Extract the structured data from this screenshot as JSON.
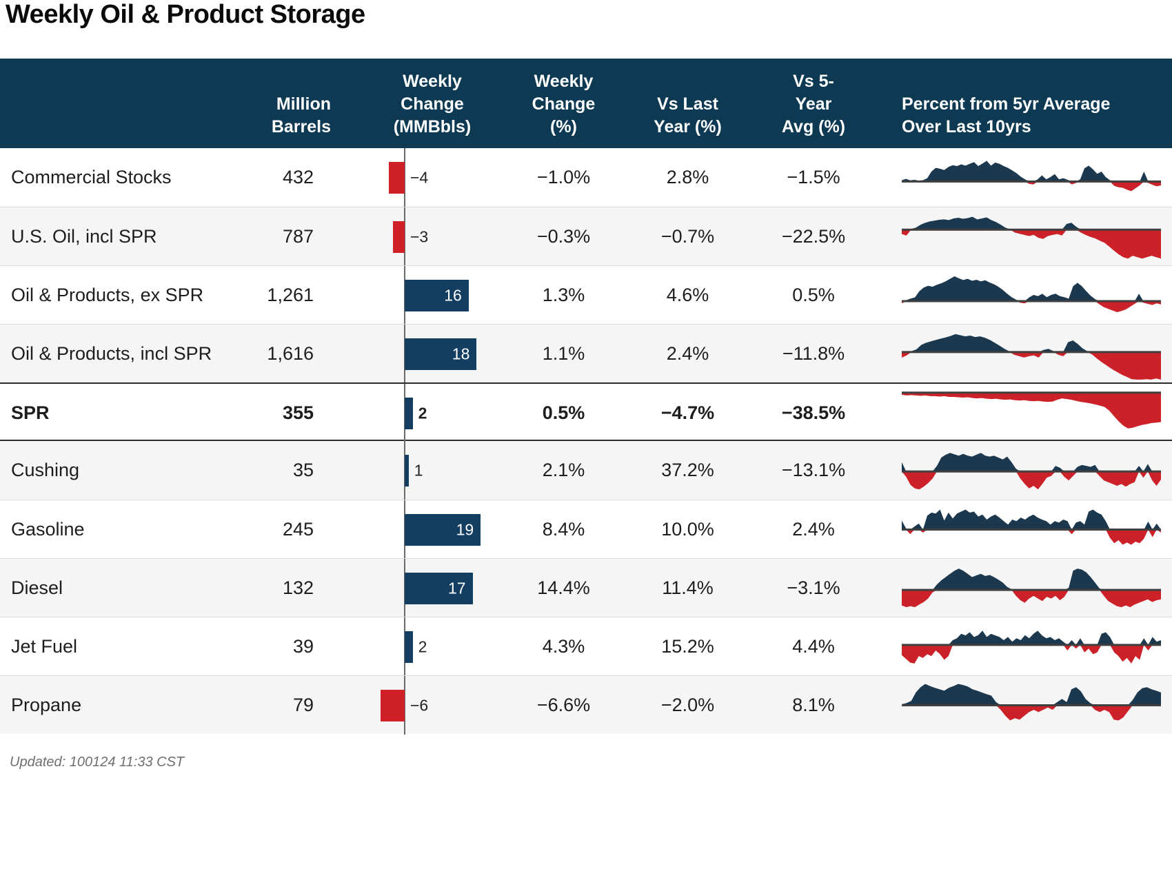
{
  "title": "Weekly Oil & Product Storage",
  "footer": {
    "updated": "Updated: 100124 11:33 CST"
  },
  "colors": {
    "header_bg": "#0d3a52",
    "navy": "#133e61",
    "red": "#cf2027",
    "spark_navy": "#1b384e",
    "spark_red": "#cd2129",
    "spark_axis": "#3f3f3f",
    "row_alt": "#f5f5f6",
    "axis_line": "#6a6a6a"
  },
  "chart_data": {
    "type": "table",
    "title": "Weekly Oil & Product Storage",
    "columns": [
      {
        "id": "label",
        "label": ""
      },
      {
        "id": "million_barrels",
        "label": "Million\nBarrels"
      },
      {
        "id": "weekly_change_mmbbls",
        "label": "Weekly\nChange\n(MMBbls)"
      },
      {
        "id": "weekly_change_pct",
        "label": "Weekly\nChange\n(%)"
      },
      {
        "id": "vs_last_year_pct",
        "label": "Vs Last\nYear (%)"
      },
      {
        "id": "vs_5yr_avg_pct",
        "label": "Vs 5-\nYear\nAvg (%)"
      },
      {
        "id": "pct_from_5yr_avg",
        "label": "Percent from 5yr Average\nOver Last 10yrs"
      }
    ],
    "bar_axis_note": "bars show weekly change in MMBbls, negative red to left, positive navy to right",
    "rows": [
      {
        "label": "Commercial Stocks",
        "million_barrels": "432",
        "weekly_change": -4,
        "weekly_change_label": "−4",
        "weekly_change_pct": "−1.0%",
        "vs_last_year_pct": "2.8%",
        "vs_5yr_avg_pct": "−1.5%",
        "bold": false,
        "spark": {
          "baseline": 0.57,
          "pos": 32,
          "neg": 14,
          "values": [
            0.06,
            0.12,
            0.05,
            0.08,
            0.04,
            0.06,
            0.15,
            0.45,
            0.62,
            0.58,
            0.52,
            0.66,
            0.74,
            0.7,
            0.78,
            0.72,
            0.8,
            0.88,
            0.7,
            0.82,
            0.94,
            0.72,
            0.86,
            0.8,
            0.7,
            0.62,
            0.5,
            0.38,
            0.22,
            0.1,
            -0.25,
            -0.3,
            0.1,
            0.28,
            0.1,
            0.2,
            0.34,
            0.1,
            0.15,
            0.08,
            -0.3,
            -0.15,
            0.1,
            0.6,
            0.72,
            0.55,
            0.35,
            0.45,
            0.2,
            0.06,
            -0.45,
            -0.6,
            -0.65,
            -0.85,
            -1.0,
            -0.7,
            -0.4,
            0.45,
            -0.15,
            -0.35,
            -0.5,
            -0.4
          ]
        }
      },
      {
        "label": "U.S. Oil, incl SPR",
        "million_barrels": "787",
        "weekly_change": -3,
        "weekly_change_label": "−3",
        "weekly_change_pct": "−0.3%",
        "vs_last_year_pct": "−0.7%",
        "vs_5yr_avg_pct": "−22.5%",
        "bold": false,
        "spark": {
          "baseline": 0.38,
          "pos": 24,
          "neg": 42,
          "values": [
            -0.15,
            -0.2,
            0.05,
            0.12,
            0.3,
            0.42,
            0.5,
            0.55,
            0.6,
            0.62,
            0.58,
            0.68,
            0.72,
            0.66,
            0.7,
            0.78,
            0.62,
            0.68,
            0.74,
            0.58,
            0.46,
            0.3,
            0.12,
            0.02,
            -0.1,
            -0.14,
            -0.18,
            -0.22,
            -0.18,
            -0.28,
            -0.32,
            -0.22,
            -0.18,
            -0.15,
            -0.2,
            0.35,
            0.42,
            0.18,
            -0.1,
            -0.18,
            -0.25,
            -0.3,
            -0.38,
            -0.45,
            -0.58,
            -0.72,
            -0.85,
            -0.95,
            -1.0,
            -0.9,
            -0.95,
            -1.0,
            -0.95,
            -0.9,
            -0.95,
            -1.0
          ]
        }
      },
      {
        "label": "Oil & Products, ex SPR",
        "million_barrels": "1,261",
        "weekly_change": 16,
        "weekly_change_label": "16",
        "weekly_change_pct": "1.3%",
        "vs_last_year_pct": "4.6%",
        "vs_5yr_avg_pct": "0.5%",
        "bold": false,
        "spark": {
          "baseline": 0.6,
          "pos": 36,
          "neg": 16,
          "values": [
            -0.2,
            0.04,
            0.1,
            0.15,
            0.4,
            0.55,
            0.62,
            0.58,
            0.66,
            0.72,
            0.8,
            0.9,
            1.0,
            0.92,
            0.85,
            0.9,
            0.82,
            0.86,
            0.8,
            0.84,
            0.75,
            0.68,
            0.58,
            0.45,
            0.3,
            0.16,
            0.06,
            -0.15,
            -0.2,
            0.15,
            0.25,
            0.2,
            0.3,
            0.16,
            0.25,
            0.3,
            0.2,
            0.16,
            0.1,
            0.6,
            0.74,
            0.6,
            0.4,
            0.22,
            0.08,
            -0.3,
            -0.55,
            -0.7,
            -0.85,
            -1.0,
            -0.9,
            -0.75,
            -0.5,
            -0.25,
            0.3,
            -0.15,
            -0.25,
            -0.35,
            -0.2,
            -0.3
          ]
        }
      },
      {
        "label": "Oil & Products, incl SPR",
        "million_barrels": "1,616",
        "weekly_change": 18,
        "weekly_change_label": "18",
        "weekly_change_pct": "1.1%",
        "vs_last_year_pct": "2.4%",
        "vs_5yr_avg_pct": "−11.8%",
        "bold": false,
        "spark": {
          "baseline": 0.47,
          "pos": 26,
          "neg": 40,
          "values": [
            -0.2,
            -0.12,
            0.05,
            0.15,
            0.4,
            0.52,
            0.6,
            0.68,
            0.75,
            0.82,
            0.9,
            1.0,
            0.94,
            0.88,
            0.92,
            0.84,
            0.88,
            0.8,
            0.68,
            0.52,
            0.36,
            0.18,
            0.04,
            -0.1,
            -0.15,
            -0.2,
            -0.15,
            -0.12,
            -0.2,
            0.12,
            0.18,
            0.06,
            -0.1,
            -0.15,
            0.55,
            0.65,
            0.45,
            0.2,
            0.04,
            -0.1,
            -0.25,
            -0.38,
            -0.5,
            -0.62,
            -0.72,
            -0.82,
            -0.9,
            -0.98,
            -1.0,
            -1.0,
            -0.98,
            -1.0,
            -0.96,
            -1.0
          ]
        }
      },
      {
        "label": "SPR",
        "million_barrels": "355",
        "weekly_change": 2,
        "weekly_change_label": "2",
        "weekly_change_pct": "0.5%",
        "vs_last_year_pct": "−4.7%",
        "vs_5yr_avg_pct": "−38.5%",
        "bold": true,
        "spark": {
          "baseline": 0.15,
          "pos": 8,
          "neg": 52,
          "values": [
            -0.06,
            -0.08,
            -0.07,
            -0.08,
            -0.09,
            -0.08,
            -0.1,
            -0.1,
            -0.11,
            -0.1,
            -0.12,
            -0.12,
            -0.13,
            -0.14,
            -0.13,
            -0.15,
            -0.16,
            -0.15,
            -0.17,
            -0.18,
            -0.17,
            -0.19,
            -0.2,
            -0.19,
            -0.21,
            -0.22,
            -0.21,
            -0.23,
            -0.24,
            -0.23,
            -0.25,
            -0.26,
            -0.25,
            -0.2,
            -0.16,
            -0.18,
            -0.2,
            -0.23,
            -0.26,
            -0.28,
            -0.3,
            -0.33,
            -0.36,
            -0.4,
            -0.5,
            -0.65,
            -0.8,
            -0.92,
            -1.0,
            -0.98,
            -0.94,
            -0.9,
            -0.88,
            -0.85,
            -0.84,
            -0.82
          ]
        }
      },
      {
        "label": "Cushing",
        "million_barrels": "35",
        "weekly_change": 1,
        "weekly_change_label": "1",
        "weekly_change_pct": "2.1%",
        "vs_last_year_pct": "37.2%",
        "vs_5yr_avg_pct": "−13.1%",
        "bold": false,
        "spark": {
          "baseline": 0.52,
          "pos": 27,
          "neg": 26,
          "values": [
            0.5,
            -0.3,
            -0.75,
            -0.95,
            -1.0,
            -0.85,
            -0.65,
            -0.4,
            0.3,
            0.75,
            0.9,
            1.0,
            0.92,
            0.85,
            0.95,
            0.85,
            0.8,
            0.9,
            1.0,
            0.85,
            0.8,
            0.85,
            0.75,
            0.65,
            0.8,
            0.5,
            0.15,
            -0.4,
            -0.7,
            -0.95,
            -0.8,
            -1.0,
            -0.7,
            -0.35,
            -0.25,
            0.3,
            0.2,
            -0.3,
            -0.5,
            -0.25,
            0.25,
            0.35,
            0.3,
            0.25,
            0.35,
            -0.25,
            -0.5,
            -0.6,
            -0.7,
            -0.8,
            -0.7,
            -0.85,
            -0.7,
            -0.6,
            0.3,
            -0.35,
            0.4,
            -0.5,
            -0.8,
            -0.45
          ]
        }
      },
      {
        "label": "Gasoline",
        "million_barrels": "245",
        "weekly_change": 19,
        "weekly_change_label": "19",
        "weekly_change_pct": "8.4%",
        "vs_last_year_pct": "10.0%",
        "vs_5yr_avg_pct": "2.4%",
        "bold": false,
        "spark": {
          "baseline": 0.5,
          "pos": 29,
          "neg": 22,
          "values": [
            0.45,
            0.06,
            -0.3,
            0.15,
            0.3,
            -0.2,
            0.7,
            0.85,
            0.8,
            1.0,
            0.45,
            0.85,
            0.55,
            0.8,
            0.9,
            1.0,
            0.85,
            0.9,
            0.65,
            0.75,
            0.5,
            0.65,
            0.75,
            0.6,
            0.42,
            0.25,
            0.5,
            0.42,
            0.6,
            0.5,
            0.65,
            0.75,
            0.6,
            0.5,
            0.42,
            0.25,
            0.42,
            0.35,
            0.5,
            0.42,
            -0.3,
            0.35,
            0.42,
            0.25,
            0.9,
            1.0,
            0.85,
            0.75,
            0.42,
            -0.55,
            -0.9,
            -0.7,
            -1.0,
            -0.85,
            -1.0,
            -0.8,
            -0.9,
            -0.6,
            0.4,
            -0.5,
            0.3,
            -0.2
          ]
        }
      },
      {
        "label": "Diesel",
        "million_barrels": "132",
        "weekly_change": 17,
        "weekly_change_label": "17",
        "weekly_change_pct": "14.4%",
        "vs_last_year_pct": "11.4%",
        "vs_5yr_avg_pct": "−3.1%",
        "bold": false,
        "spark": {
          "baseline": 0.53,
          "pos": 31,
          "neg": 25,
          "values": [
            -0.9,
            -1.0,
            -0.95,
            -1.0,
            -0.85,
            -0.7,
            -0.5,
            -0.15,
            0.25,
            0.45,
            0.6,
            0.75,
            0.9,
            1.0,
            0.9,
            0.75,
            0.6,
            0.68,
            0.75,
            0.65,
            0.7,
            0.6,
            0.48,
            0.34,
            0.14,
            0.03,
            -0.35,
            -0.6,
            -0.75,
            -0.5,
            -0.35,
            -0.5,
            -0.65,
            -0.4,
            -0.5,
            -0.35,
            -0.6,
            -0.4,
            0.1,
            0.9,
            1.0,
            0.95,
            0.82,
            0.6,
            0.34,
            0.07,
            -0.35,
            -0.65,
            -0.8,
            -0.95,
            -1.0,
            -0.9,
            -1.0,
            -0.85,
            -0.75,
            -0.65,
            -0.55,
            -0.7,
            -0.6,
            -0.55
          ]
        }
      },
      {
        "label": "Jet Fuel",
        "million_barrels": "39",
        "weekly_change": 2,
        "weekly_change_label": "2",
        "weekly_change_pct": "4.3%",
        "vs_last_year_pct": "15.2%",
        "vs_5yr_avg_pct": "4.4%",
        "bold": false,
        "spark": {
          "baseline": 0.47,
          "pos": 23,
          "neg": 27,
          "values": [
            -0.55,
            -0.75,
            -0.95,
            -1.0,
            -0.6,
            -0.7,
            -0.5,
            -0.6,
            -0.3,
            -0.5,
            -0.8,
            -0.6,
            0.3,
            0.42,
            0.7,
            0.6,
            0.8,
            0.5,
            0.62,
            0.9,
            0.5,
            0.7,
            0.6,
            0.5,
            0.3,
            0.5,
            0.2,
            0.42,
            0.3,
            0.62,
            0.42,
            0.7,
            0.9,
            0.6,
            0.42,
            0.5,
            0.3,
            0.42,
            0.2,
            -0.3,
            0.3,
            -0.2,
            0.42,
            -0.4,
            -0.2,
            -0.5,
            -0.4,
            0.7,
            0.8,
            0.5,
            -0.4,
            -0.6,
            -0.9,
            -0.7,
            -1.0,
            -0.6,
            -0.8,
            0.42,
            -0.3,
            0.5,
            0.2,
            0.3
          ]
        }
      },
      {
        "label": "Propane",
        "million_barrels": "79",
        "weekly_change": -6,
        "weekly_change_label": "−6",
        "weekly_change_pct": "−6.6%",
        "vs_last_year_pct": "−2.0%",
        "vs_5yr_avg_pct": "8.1%",
        "bold": false,
        "spark": {
          "baseline": 0.5,
          "pos": 31,
          "neg": 22,
          "values": [
            0.05,
            0.1,
            0.2,
            0.6,
            0.85,
            1.0,
            0.9,
            0.82,
            0.75,
            0.68,
            0.82,
            0.9,
            1.0,
            0.95,
            0.88,
            0.75,
            0.68,
            0.6,
            0.52,
            0.45,
            0.15,
            -0.3,
            -0.7,
            -1.0,
            -0.85,
            -0.95,
            -0.7,
            -0.45,
            -0.3,
            -0.45,
            -0.3,
            -0.15,
            -0.3,
            0.15,
            0.3,
            0.15,
            0.75,
            0.85,
            0.65,
            0.3,
            0.1,
            -0.3,
            -0.45,
            -0.3,
            -0.45,
            -0.95,
            -1.0,
            -0.8,
            -0.4,
            0.25,
            0.6,
            0.8,
            0.85,
            0.75,
            0.68,
            0.6
          ]
        }
      }
    ]
  }
}
